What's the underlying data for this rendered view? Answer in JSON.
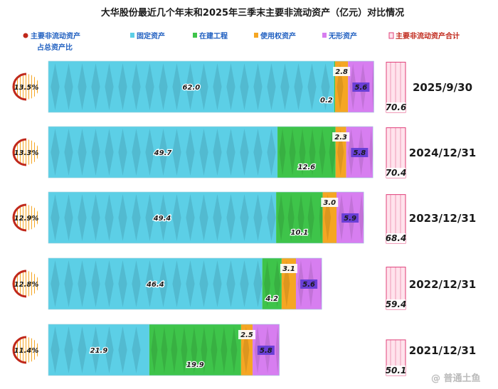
{
  "chart_data": {
    "type": "bar",
    "stacked": true,
    "orientation": "horizontal",
    "title": "大华股份最近几个年末和2025年三季末主要非流动资产（亿元）对比情况",
    "legend": {
      "ratio_label_line1": "主要非流动资产",
      "ratio_label_line2": "占总资产比",
      "total_label": "主要非流动资产合计",
      "placement": "top"
    },
    "series": [
      {
        "name": "固定资产",
        "color": "#5ccfe6",
        "values": [
          62.0,
          49.7,
          49.4,
          46.4,
          21.9
        ]
      },
      {
        "name": "在建工程",
        "color": "#3ec44a",
        "values": [
          0.2,
          12.6,
          10.1,
          4.2,
          19.9
        ]
      },
      {
        "name": "使用权资产",
        "color": "#f5a623",
        "values": [
          2.8,
          2.3,
          3.0,
          3.1,
          2.5
        ]
      },
      {
        "name": "无形资产",
        "color": "#d77ef0",
        "values": [
          5.6,
          5.8,
          5.9,
          5.6,
          5.8
        ]
      }
    ],
    "periods": [
      "2025/9/30",
      "2024/12/31",
      "2023/12/31",
      "2022/12/31",
      "2021/12/31"
    ],
    "labels": [
      [
        "62.0",
        "0.2",
        "2.8",
        "5.6"
      ],
      [
        "49.7",
        "12.6",
        "2.3",
        "5.8"
      ],
      [
        "49.4",
        "10.1",
        "3.0",
        "5.9"
      ],
      [
        "46.4",
        "4.2",
        "3.1",
        "5.6"
      ],
      [
        "21.9",
        "19.9",
        "2.5",
        "5.8"
      ]
    ],
    "ratios": [
      "13.5%",
      "13.3%",
      "12.9%",
      "12.8%",
      "11.4%"
    ],
    "ratio_values": [
      13.5,
      13.3,
      12.9,
      12.8,
      11.4
    ],
    "totals": [
      70.6,
      70.4,
      68.4,
      59.4,
      50.1
    ],
    "total_labels": [
      "70.6",
      "70.4",
      "68.4",
      "59.4",
      "50.1"
    ],
    "xlim": [
      0,
      72
    ],
    "total_max": 72,
    "colors": {
      "ratio": "#c0281b",
      "ratio_fill": "#f5a623",
      "total": "#e0407a",
      "total_fill": "#ffd6e4"
    }
  },
  "watermark": "@ 普通土鱼"
}
